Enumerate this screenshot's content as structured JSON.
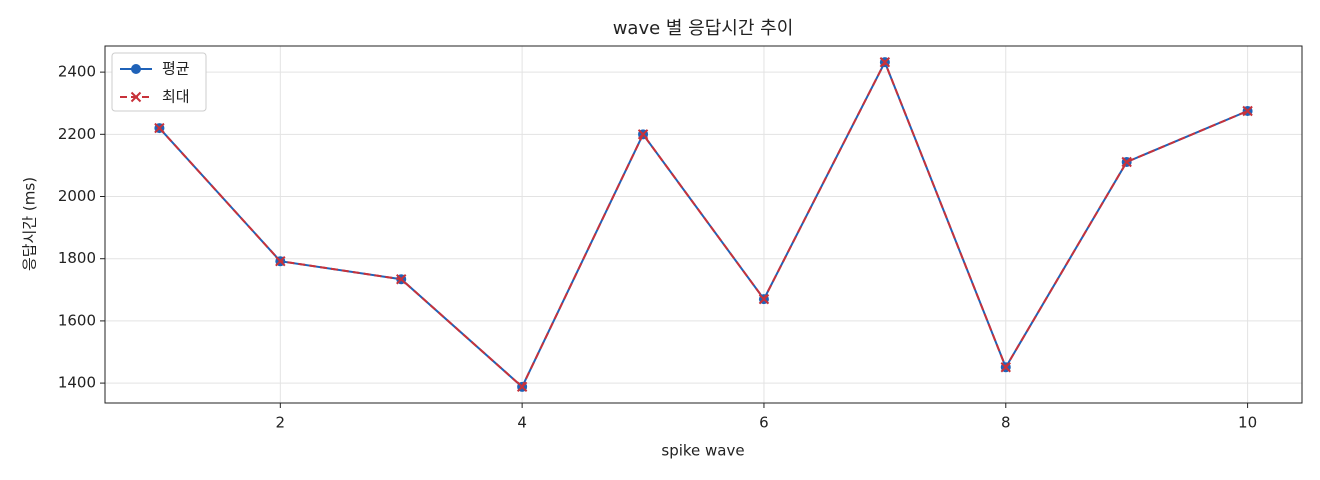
{
  "chart_data": {
    "type": "line",
    "title": "wave 별 응답시간 추이",
    "x_label": "spike wave",
    "y_label": "응답시간 (ms)",
    "x": [
      1,
      2,
      3,
      4,
      5,
      6,
      7,
      8,
      9,
      10
    ],
    "series": [
      {
        "name": "평균",
        "color": "#1f62b8",
        "marker": "o",
        "linestyle": "solid",
        "values": [
          2220,
          1792,
          1734,
          1388,
          2200,
          1670,
          2432,
          1451,
          2111,
          2275
        ]
      },
      {
        "name": "최대",
        "color": "#c8323a",
        "marker": "x",
        "linestyle": "dashed",
        "values": [
          2220,
          1792,
          1734,
          1388,
          2200,
          1670,
          2432,
          1451,
          2111,
          2275
        ]
      }
    ],
    "xlim": [
      0.55,
      10.45
    ],
    "ylim": [
      1336,
      2484
    ],
    "xticks": [
      2,
      4,
      6,
      8,
      10
    ],
    "yticks": [
      1400,
      1600,
      1800,
      2000,
      2200,
      2400
    ],
    "grid": true,
    "legend": "upper left"
  }
}
